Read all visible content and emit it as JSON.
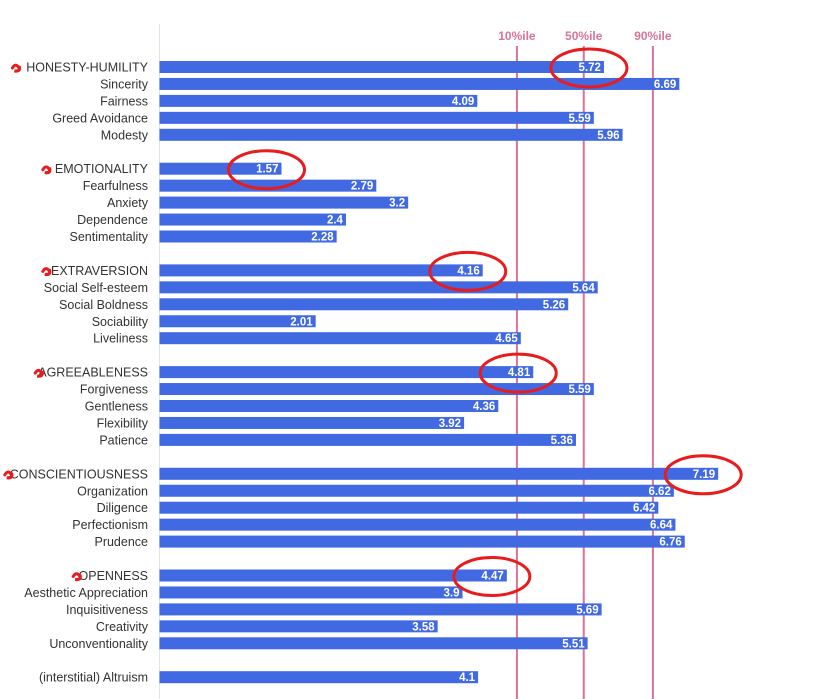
{
  "chart_data": {
    "type": "bar",
    "orientation": "horizontal",
    "title": "",
    "xlim": [
      0,
      7.5
    ],
    "bar_color": "#4169e1",
    "grid": false,
    "categories": [
      "HONESTY-HUMILITY",
      "Sincerity",
      "Fairness",
      "Greed Avoidance",
      "Modesty",
      "EMOTIONALITY",
      "Fearfulness",
      "Anxiety",
      "Dependence",
      "Sentimentality",
      "EXTRAVERSION",
      "Social Self-esteem",
      "Social Boldness",
      "Sociability",
      "Liveliness",
      "AGREEABLENESS",
      "Forgiveness",
      "Gentleness",
      "Flexibility",
      "Patience",
      "CONSCIENTIOUSNESS",
      "Organization",
      "Diligence",
      "Perfectionism",
      "Prudence",
      "OPENNESS",
      "Aesthetic Appreciation",
      "Inquisitiveness",
      "Creativity",
      "Unconventionality",
      "(interstitial) Altruism"
    ],
    "values": [
      5.72,
      6.69,
      4.09,
      5.59,
      5.96,
      1.57,
      2.79,
      3.2,
      2.4,
      2.28,
      4.16,
      5.64,
      5.26,
      2.01,
      4.65,
      4.81,
      5.59,
      4.36,
      3.92,
      5.36,
      7.19,
      6.62,
      6.42,
      6.64,
      6.76,
      4.47,
      3.9,
      5.69,
      3.58,
      5.51,
      4.1
    ],
    "value_labels": [
      "5.72",
      "6.69",
      "4.09",
      "5.59",
      "5.96",
      "1.57",
      "2.79",
      "3.2",
      "2.4",
      "2.28",
      "4.16",
      "5.64",
      "5.26",
      "2.01",
      "4.65",
      "4.81",
      "5.59",
      "4.36",
      "3.92",
      "5.36",
      "7.19",
      "6.62",
      "6.42",
      "6.64",
      "6.76",
      "4.47",
      "3.9",
      "5.69",
      "3.58",
      "5.51",
      "4.1"
    ],
    "groups": [
      {
        "start": 0,
        "count": 5
      },
      {
        "start": 5,
        "count": 5
      },
      {
        "start": 10,
        "count": 5
      },
      {
        "start": 15,
        "count": 5
      },
      {
        "start": 20,
        "count": 5
      },
      {
        "start": 25,
        "count": 5
      },
      {
        "start": 30,
        "count": 1
      }
    ],
    "reference_lines": [
      {
        "label": "10%ile",
        "value": 4.6,
        "color": "#d9739a"
      },
      {
        "label": "50%ile",
        "value": 5.46,
        "color": "#d9739a"
      },
      {
        "label": "90%ile",
        "value": 6.35,
        "color": "#d9739a"
      }
    ],
    "highlighted": [
      0,
      5,
      10,
      15,
      20,
      25
    ],
    "highlight_color": "#e81c1c"
  }
}
